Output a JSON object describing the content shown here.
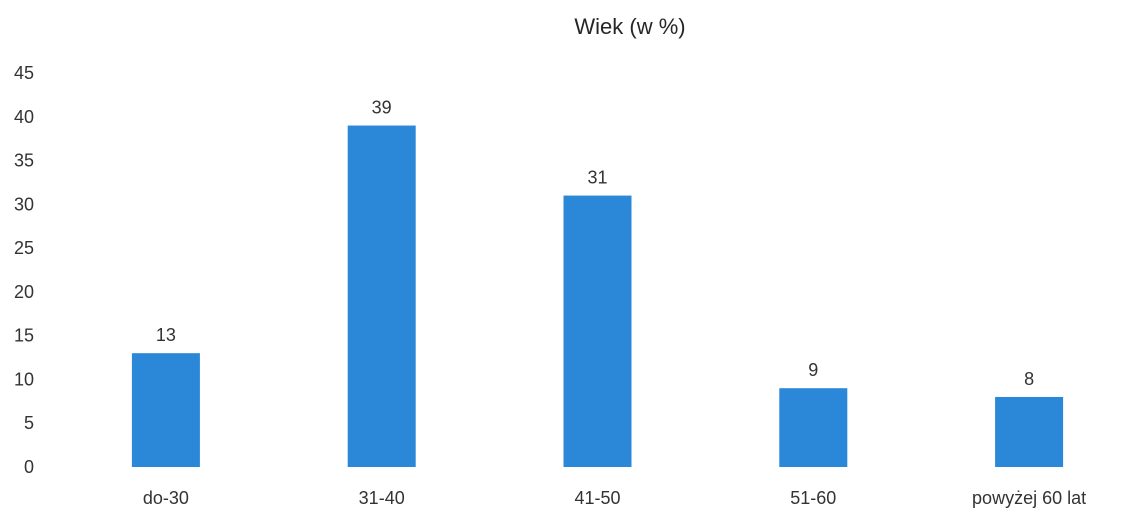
{
  "chart_data": {
    "type": "bar",
    "title": "Wiek (w %)",
    "categories": [
      "do-30",
      "31-40",
      "41-50",
      "51-60",
      "powyżej 60 lat"
    ],
    "values": [
      13,
      39,
      31,
      9,
      8
    ],
    "data_labels": [
      "13",
      "39",
      "31",
      "9",
      "8"
    ],
    "ylim": [
      0,
      45
    ],
    "yticks": [
      0,
      5,
      10,
      15,
      20,
      25,
      30,
      35,
      40,
      45
    ],
    "xlabel": "",
    "ylabel": "",
    "grid": false,
    "legend": "none",
    "bar_color": "#2B87D8"
  }
}
